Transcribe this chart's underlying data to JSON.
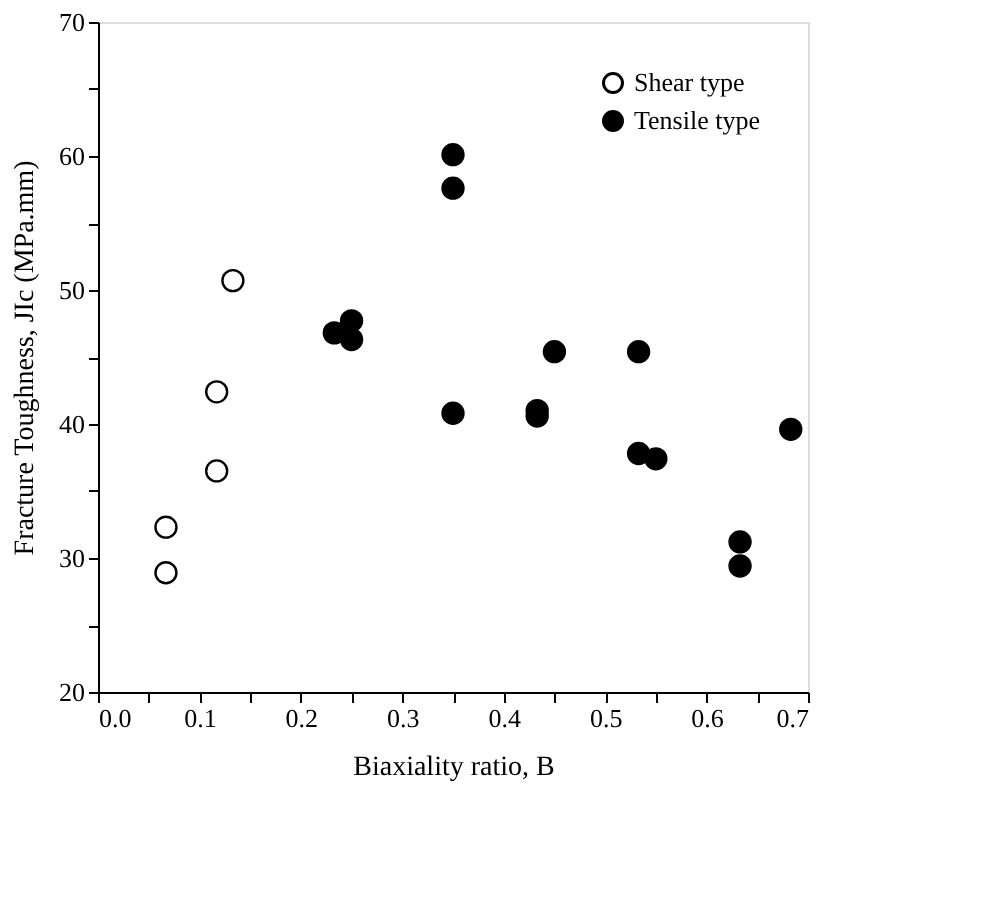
{
  "chart_data": {
    "type": "scatter",
    "xlabel": "Biaxiality ratio, B",
    "ylabel": "Fracture Toughness, JIc (MPa.mm)",
    "xlim": [
      0.0,
      0.7
    ],
    "ylim": [
      20,
      70
    ],
    "xticks": [
      {
        "value": 0.0,
        "label": "0.0"
      },
      {
        "value": 0.05,
        "label": null
      },
      {
        "value": 0.1,
        "label": "0.1"
      },
      {
        "value": 0.15,
        "label": null
      },
      {
        "value": 0.2,
        "label": "0.2"
      },
      {
        "value": 0.25,
        "label": null
      },
      {
        "value": 0.3,
        "label": "0.3"
      },
      {
        "value": 0.35,
        "label": null
      },
      {
        "value": 0.4,
        "label": "0.4"
      },
      {
        "value": 0.45,
        "label": null
      },
      {
        "value": 0.5,
        "label": "0.5"
      },
      {
        "value": 0.55,
        "label": null
      },
      {
        "value": 0.6,
        "label": "0.6"
      },
      {
        "value": 0.65,
        "label": null
      },
      {
        "value": 0.7,
        "label": "0.7"
      }
    ],
    "yticks": [
      20,
      {
        "value": 25,
        "label": null
      },
      30,
      {
        "value": 35,
        "label": null
      },
      40,
      {
        "value": 45,
        "label": null
      },
      50,
      {
        "value": 55,
        "label": null
      },
      60,
      {
        "value": 65,
        "label": null
      },
      70
    ],
    "grid": false,
    "legend": "top right",
    "marker": "circle",
    "series": [
      {
        "name": "Shear type",
        "color": "#ffffff",
        "x": [
          0.067,
          0.067,
          0.117,
          0.117,
          0.133
        ],
        "values": [
          32.3,
          28.9,
          42.4,
          36.5,
          50.7
        ]
      },
      {
        "name": "Tensile type",
        "color": "#000000",
        "x": [
          0.233,
          0.25,
          0.25,
          0.35,
          0.35,
          0.35,
          0.433,
          0.433,
          0.45,
          0.533,
          0.533,
          0.55,
          0.633,
          0.633,
          0.683
        ],
        "values": [
          46.8,
          47.7,
          46.3,
          60.1,
          57.6,
          40.8,
          41.0,
          40.6,
          45.4,
          45.4,
          37.8,
          37.4,
          31.2,
          29.4,
          39.6
        ]
      }
    ]
  }
}
